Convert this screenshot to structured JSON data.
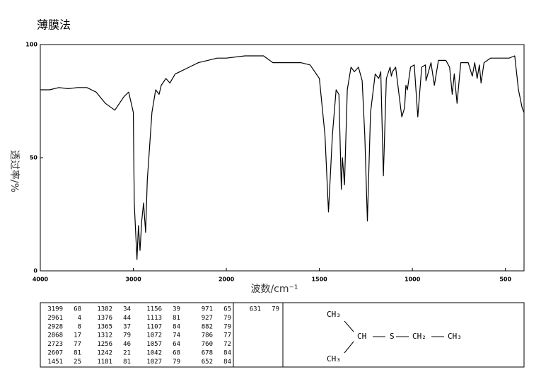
{
  "chart_data": {
    "type": "line",
    "title": "薄膜法",
    "x_label": "波数/cm⁻¹",
    "y_label": "透过率/%",
    "xlim": [
      4000,
      400
    ],
    "xticks": [
      4000,
      3000,
      2000,
      1500,
      1000,
      500
    ],
    "ylim": [
      0,
      100
    ],
    "yticks": [
      0,
      50,
      100
    ],
    "color": "#000000",
    "x": [
      4000,
      3900,
      3800,
      3700,
      3600,
      3500,
      3400,
      3300,
      3199,
      3100,
      3050,
      3000,
      2990,
      2961,
      2945,
      2928,
      2910,
      2890,
      2868,
      2850,
      2800,
      2760,
      2723,
      2700,
      2650,
      2607,
      2550,
      2500,
      2400,
      2300,
      2200,
      2100,
      2000,
      1900,
      1800,
      1750,
      1700,
      1600,
      1550,
      1500,
      1470,
      1451,
      1430,
      1410,
      1395,
      1382,
      1376,
      1365,
      1350,
      1330,
      1312,
      1290,
      1270,
      1256,
      1242,
      1225,
      1200,
      1181,
      1170,
      1156,
      1140,
      1120,
      1113,
      1107,
      1090,
      1072,
      1057,
      1042,
      1035,
      1027,
      1010,
      990,
      971,
      950,
      930,
      927,
      900,
      882,
      860,
      820,
      800,
      786,
      775,
      760,
      740,
      700,
      678,
      665,
      652,
      640,
      631,
      615,
      580,
      520,
      480,
      450,
      430,
      410,
      400
    ],
    "values": [
      80,
      80,
      81,
      80.5,
      81,
      81,
      79,
      74,
      71,
      77,
      79,
      70,
      30,
      5,
      20,
      9,
      22,
      30,
      17,
      40,
      70,
      80,
      78,
      82,
      85,
      83,
      87,
      88,
      90,
      92,
      93,
      94,
      94,
      95,
      95,
      92,
      92,
      92,
      91,
      85,
      60,
      26,
      60,
      80,
      78,
      36,
      50,
      38,
      80,
      90,
      88,
      90,
      84,
      60,
      22,
      70,
      87,
      85,
      88,
      42,
      85,
      90,
      86,
      88,
      90,
      78,
      68,
      72,
      82,
      80,
      90,
      91,
      68,
      90,
      91,
      84,
      92,
      82,
      93,
      93,
      90,
      78,
      87,
      74,
      92,
      92,
      86,
      92,
      85,
      91,
      83,
      92,
      94,
      94,
      94,
      95,
      80,
      72,
      70
    ]
  },
  "peak_table": {
    "rows": [
      [
        3199,
        68
      ],
      [
        2961,
        4
      ],
      [
        2928,
        8
      ],
      [
        2868,
        17
      ],
      [
        2723,
        77
      ],
      [
        2607,
        81
      ],
      [
        1451,
        25
      ],
      [
        1382,
        34
      ],
      [
        1376,
        44
      ],
      [
        1365,
        37
      ],
      [
        1312,
        79
      ],
      [
        1256,
        46
      ],
      [
        1242,
        21
      ],
      [
        1181,
        81
      ],
      [
        1156,
        39
      ],
      [
        1113,
        81
      ],
      [
        1107,
        84
      ],
      [
        1072,
        74
      ],
      [
        1057,
        64
      ],
      [
        1042,
        68
      ],
      [
        1027,
        79
      ],
      [
        971,
        65
      ],
      [
        927,
        79
      ],
      [
        882,
        79
      ],
      [
        786,
        77
      ],
      [
        760,
        72
      ],
      [
        678,
        84
      ],
      [
        652,
        84
      ],
      [
        631,
        79
      ]
    ]
  },
  "structure": {
    "groups": [
      "CH₃",
      "CH₃",
      "CH",
      "S",
      "CH₂",
      "CH₃"
    ]
  }
}
